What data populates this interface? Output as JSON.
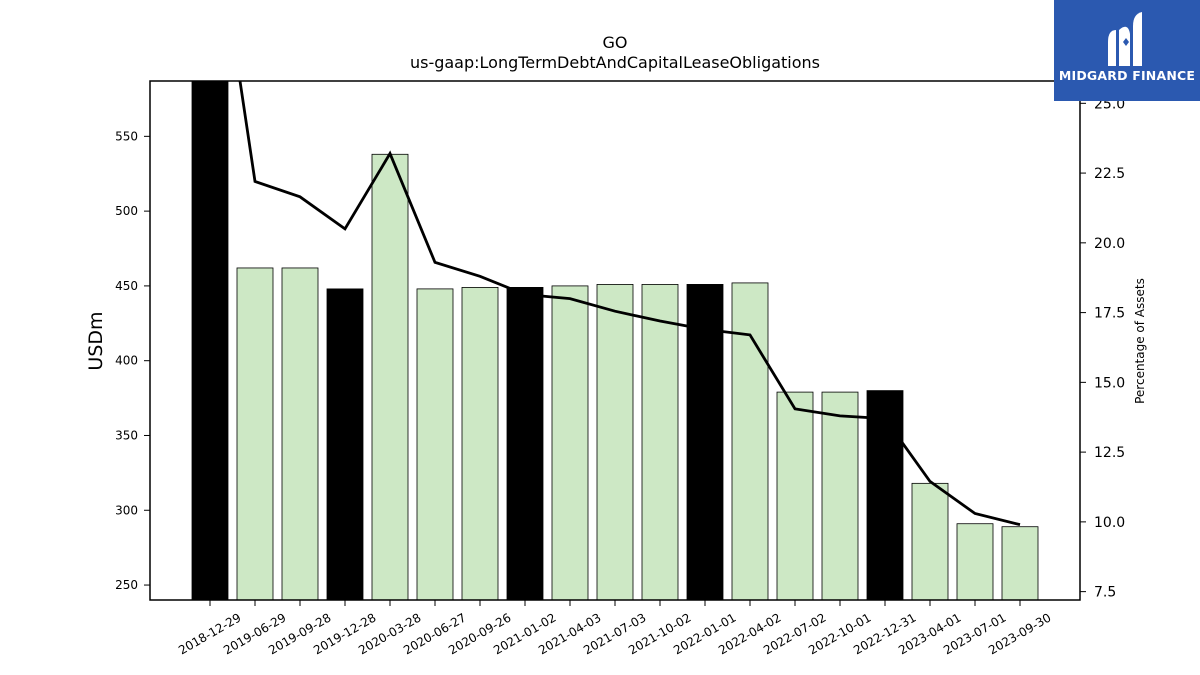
{
  "chart_data": {
    "type": "bar",
    "title": "GO",
    "subtitle": "us-gaap:LongTermDebtAndCapitalLeaseObligations",
    "ylabel": "USDm",
    "y2label": "Percentage of Assets",
    "categories": [
      "2018-12-29",
      "2019-06-29",
      "2019-09-28",
      "2019-12-28",
      "2020-03-28",
      "2020-06-27",
      "2020-09-26",
      "2021-01-02",
      "2021-04-03",
      "2021-07-03",
      "2021-10-02",
      "2022-01-01",
      "2022-04-02",
      "2022-07-02",
      "2022-10-01",
      "2022-12-31",
      "2023-04-01",
      "2023-07-01",
      "2023-09-30"
    ],
    "values": [
      590,
      462,
      462,
      448,
      538,
      448,
      449,
      449,
      450,
      451,
      451,
      451,
      452,
      379,
      379,
      380,
      318,
      291,
      289
    ],
    "annual": [
      true,
      false,
      false,
      true,
      false,
      false,
      false,
      true,
      false,
      false,
      false,
      true,
      false,
      false,
      false,
      true,
      false,
      false,
      false
    ],
    "pct_assets": [
      33.0,
      22.2,
      21.65,
      20.5,
      23.2,
      19.3,
      18.8,
      18.15,
      18.0,
      17.55,
      17.2,
      16.9,
      16.7,
      14.05,
      13.8,
      13.7,
      11.45,
      10.3,
      9.9
    ],
    "ylim": [
      240,
      587
    ],
    "y2lim": [
      7.2,
      25.8
    ],
    "yticks": [
      "250",
      "300",
      "350",
      "400",
      "450",
      "500",
      "550"
    ],
    "y2ticks": [
      "7.5",
      "10.0",
      "12.5",
      "15.0",
      "17.5",
      "20.0",
      "22.5",
      "25.0"
    ],
    "colors": {
      "annual_bar": "#000000",
      "quarter_bar": "#cde8c5",
      "line": "#000000"
    },
    "grid": false,
    "legend": "none"
  },
  "logo": {
    "text": "MIDGARD FINANCE",
    "bg": "#2b59b0"
  }
}
